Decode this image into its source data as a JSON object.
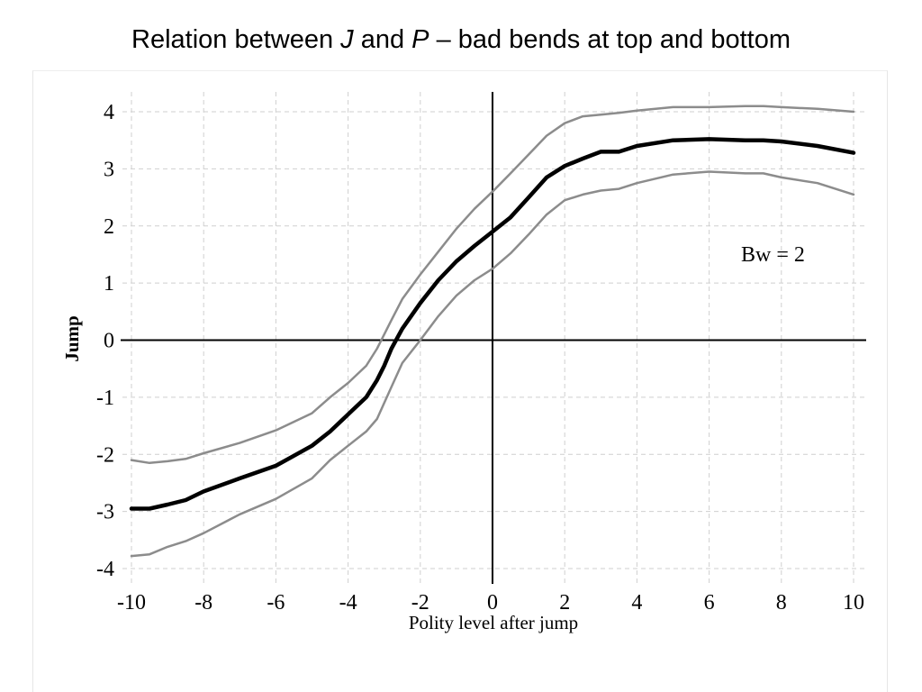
{
  "title": {
    "part1": "Relation between ",
    "var_j": "J",
    "part2": " and ",
    "var_p": "P",
    "part3": " – bad bends at top and bottom"
  },
  "chart_data": {
    "type": "line",
    "xlabel": "Polity level after jump",
    "ylabel": "Jump",
    "xlim": [
      -10,
      10
    ],
    "ylim": [
      -4,
      4
    ],
    "xticks": [
      -10,
      -8,
      -6,
      -4,
      -2,
      0,
      2,
      4,
      6,
      8,
      10
    ],
    "yticks": [
      -4,
      -3,
      -2,
      -1,
      0,
      1,
      2,
      3,
      4
    ],
    "grid": true,
    "annotation": "Bw = 2",
    "x": [
      -10,
      -9.5,
      -9,
      -8.5,
      -8,
      -7,
      -6,
      -5,
      -4.5,
      -4,
      -3.5,
      -3.2,
      -3,
      -2.8,
      -2.5,
      -2,
      -1.5,
      -1,
      -0.5,
      0,
      0.5,
      1,
      1.5,
      2,
      2.5,
      3,
      3.5,
      4,
      5,
      6,
      7,
      7.5,
      8,
      9,
      10
    ],
    "series": [
      {
        "values": [
          -2.1,
          -2.15,
          -2.12,
          -2.08,
          -1.98,
          -1.8,
          -1.58,
          -1.28,
          -1.0,
          -0.75,
          -0.45,
          -0.15,
          0.1,
          0.35,
          0.72,
          1.15,
          1.55,
          1.95,
          2.3,
          2.6,
          2.92,
          3.25,
          3.58,
          3.8,
          3.92,
          3.95,
          3.98,
          4.02,
          4.08,
          4.08,
          4.1,
          4.1,
          4.08,
          4.05,
          4.0
        ]
      },
      {
        "values": [
          -2.95,
          -2.95,
          -2.88,
          -2.8,
          -2.65,
          -2.42,
          -2.2,
          -1.85,
          -1.6,
          -1.3,
          -1.0,
          -0.7,
          -0.45,
          -0.15,
          0.2,
          0.65,
          1.05,
          1.38,
          1.65,
          1.9,
          2.15,
          2.5,
          2.85,
          3.05,
          3.18,
          3.3,
          3.3,
          3.4,
          3.5,
          3.52,
          3.5,
          3.5,
          3.48,
          3.4,
          3.28
        ]
      },
      {
        "values": [
          -3.78,
          -3.75,
          -3.62,
          -3.52,
          -3.38,
          -3.05,
          -2.78,
          -2.42,
          -2.1,
          -1.85,
          -1.6,
          -1.38,
          -1.1,
          -0.82,
          -0.4,
          0.0,
          0.42,
          0.78,
          1.05,
          1.25,
          1.52,
          1.85,
          2.2,
          2.45,
          2.55,
          2.62,
          2.65,
          2.75,
          2.9,
          2.95,
          2.92,
          2.92,
          2.85,
          2.75,
          2.55
        ]
      }
    ]
  }
}
